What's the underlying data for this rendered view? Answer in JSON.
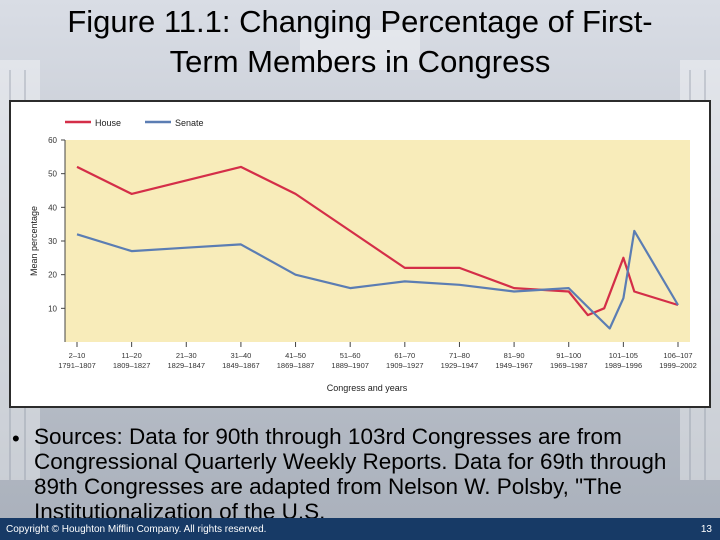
{
  "slide": {
    "title_line1": "Figure 11.1: Changing Percentage of First-",
    "title_line2": "Term Members in Congress",
    "bullet": "Sources: Data for 90th through 103rd Congresses are from Congressional Quarterly Weekly Reports. Data for 69th through 89th Congresses are adapted from Nelson W. Polsby, \"The Institutionalization of the U.S.",
    "copyright": "Copyright © Houghton Mifflin Company. All rights reserved.",
    "page_number": "13"
  },
  "colors": {
    "house": "#d42e48",
    "senate": "#5b7db3",
    "plot_bg": "#f8ecba",
    "footer": "#173a66"
  },
  "chart_data": {
    "type": "line",
    "ylabel": "Mean percentage",
    "xlabel": "Congress and years",
    "ylim": [
      0,
      60
    ],
    "yticks": [
      10,
      20,
      30,
      40,
      50,
      60
    ],
    "grid": false,
    "legend": "top-left",
    "categories": [
      {
        "congress": "2–10",
        "years": "1791–1807"
      },
      {
        "congress": "11–20",
        "years": "1809–1827"
      },
      {
        "congress": "21–30",
        "years": "1829–1847"
      },
      {
        "congress": "31–40",
        "years": "1849–1867"
      },
      {
        "congress": "41–50",
        "years": "1869–1887"
      },
      {
        "congress": "51–60",
        "years": "1889–1907"
      },
      {
        "congress": "61–70",
        "years": "1909–1927"
      },
      {
        "congress": "71–80",
        "years": "1929–1947"
      },
      {
        "congress": "81–90",
        "years": "1949–1967"
      },
      {
        "congress": "91–100",
        "years": "1969–1987"
      },
      {
        "congress": "101–105",
        "years": "1989–1996"
      },
      {
        "congress": "106–107",
        "years": "1999–2002"
      }
    ],
    "series": [
      {
        "name": "House",
        "points": [
          {
            "x": 0,
            "y": 52
          },
          {
            "x": 1,
            "y": 44
          },
          {
            "x": 2,
            "y": 48
          },
          {
            "x": 3,
            "y": 52
          },
          {
            "x": 4,
            "y": 44
          },
          {
            "x": 5,
            "y": 33
          },
          {
            "x": 6,
            "y": 22
          },
          {
            "x": 7,
            "y": 22
          },
          {
            "x": 8,
            "y": 16
          },
          {
            "x": 9,
            "y": 15
          },
          {
            "x": 9.35,
            "y": 8
          },
          {
            "x": 9.65,
            "y": 10
          },
          {
            "x": 10,
            "y": 25
          },
          {
            "x": 10.2,
            "y": 15
          },
          {
            "x": 11,
            "y": 11
          }
        ]
      },
      {
        "name": "Senate",
        "points": [
          {
            "x": 0,
            "y": 32
          },
          {
            "x": 1,
            "y": 27
          },
          {
            "x": 2,
            "y": 28
          },
          {
            "x": 3,
            "y": 29
          },
          {
            "x": 4,
            "y": 20
          },
          {
            "x": 5,
            "y": 16
          },
          {
            "x": 6,
            "y": 18
          },
          {
            "x": 7,
            "y": 17
          },
          {
            "x": 8,
            "y": 15
          },
          {
            "x": 9,
            "y": 16
          },
          {
            "x": 9.5,
            "y": 8
          },
          {
            "x": 9.75,
            "y": 4
          },
          {
            "x": 10,
            "y": 13
          },
          {
            "x": 10.2,
            "y": 33
          },
          {
            "x": 11,
            "y": 11
          }
        ]
      }
    ]
  }
}
